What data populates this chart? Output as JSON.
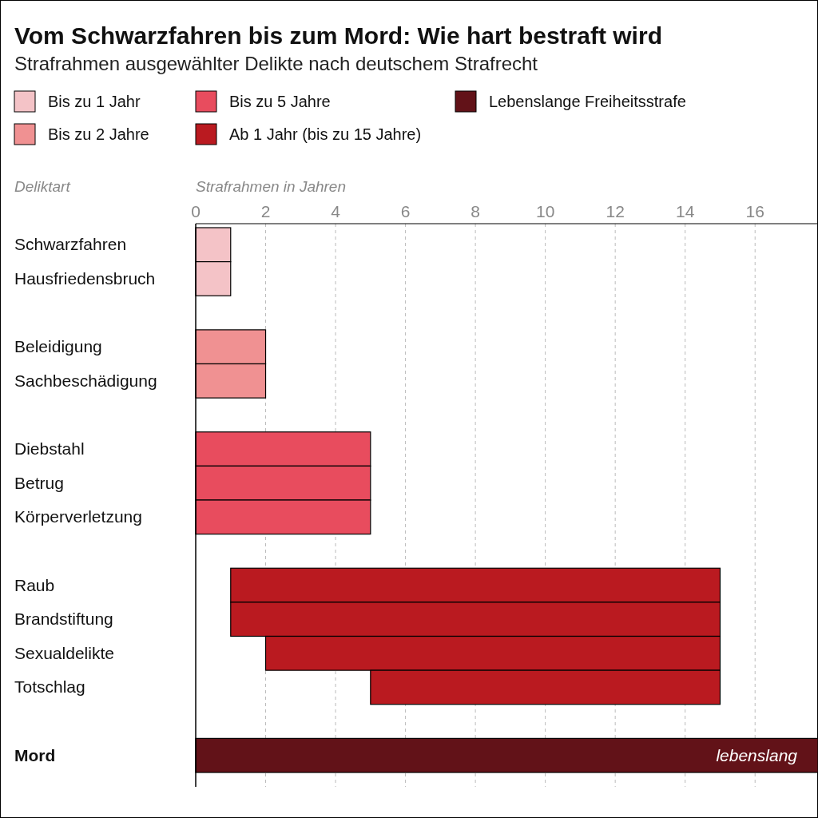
{
  "chart_data": {
    "type": "bar",
    "orientation": "horizontal",
    "title": "Vom Schwarzfahren bis zum Mord: Wie hart bestraft wird",
    "subtitle": "Strafrahmen ausgewählter Delikte nach deutschem Strafrecht",
    "xlabel": "Strafrahmen in Jahren",
    "annotations": [
      "Deliktart"
    ],
    "categories": [
      "Schwarzfahren",
      "Hausfriedensbruch",
      null,
      "Beleidigung",
      "Sachbeschädigung",
      null,
      "Diebstahl",
      "Betrug",
      "Körperverletzung",
      null,
      "Raub",
      "Brandstiftung",
      "Sexualdelikte",
      "Totschlag",
      null,
      "Mord"
    ],
    "xlim": [
      0,
      17.8
    ],
    "xticks": [
      0,
      2,
      4,
      6,
      8,
      10,
      12,
      14,
      16
    ],
    "grid": "x",
    "legend": "top",
    "series": [
      {
        "name": "Bis zu 1 Jahr",
        "color": "#f4c3c7",
        "values": [
          1,
          1,
          null,
          null,
          null,
          null,
          null,
          null,
          null,
          null,
          null,
          null,
          null,
          null,
          null,
          null
        ]
      },
      {
        "name": "Bis zu 2 Jahre",
        "color": "#f09192",
        "values": [
          null,
          null,
          null,
          2,
          2,
          null,
          null,
          null,
          null,
          null,
          null,
          null,
          null,
          null,
          null,
          null
        ]
      },
      {
        "name": "Bis zu 5 Jahre",
        "color": "#e84c5e",
        "values": [
          null,
          null,
          null,
          null,
          null,
          null,
          5,
          5,
          5,
          null,
          null,
          null,
          null,
          null,
          null,
          null
        ]
      },
      {
        "name": "Ab 1 Jahr (bis zu 15 Jahre)",
        "color": "#ba1a20",
        "base": [
          null,
          null,
          null,
          null,
          null,
          null,
          null,
          null,
          null,
          null,
          1,
          1,
          2,
          5,
          null,
          null
        ],
        "values": [
          null,
          null,
          null,
          null,
          null,
          null,
          null,
          null,
          null,
          null,
          14,
          14,
          13,
          10,
          null,
          null
        ]
      },
      {
        "name": "Lebenslange Freiheitsstrafe",
        "color": "#621218",
        "values": [
          null,
          null,
          null,
          null,
          null,
          null,
          null,
          null,
          null,
          null,
          null,
          null,
          null,
          null,
          null,
          17.8
        ],
        "value_labels": [
          null,
          null,
          null,
          null,
          null,
          null,
          null,
          null,
          null,
          null,
          null,
          null,
          null,
          null,
          null,
          "lebenslang"
        ]
      }
    ]
  }
}
